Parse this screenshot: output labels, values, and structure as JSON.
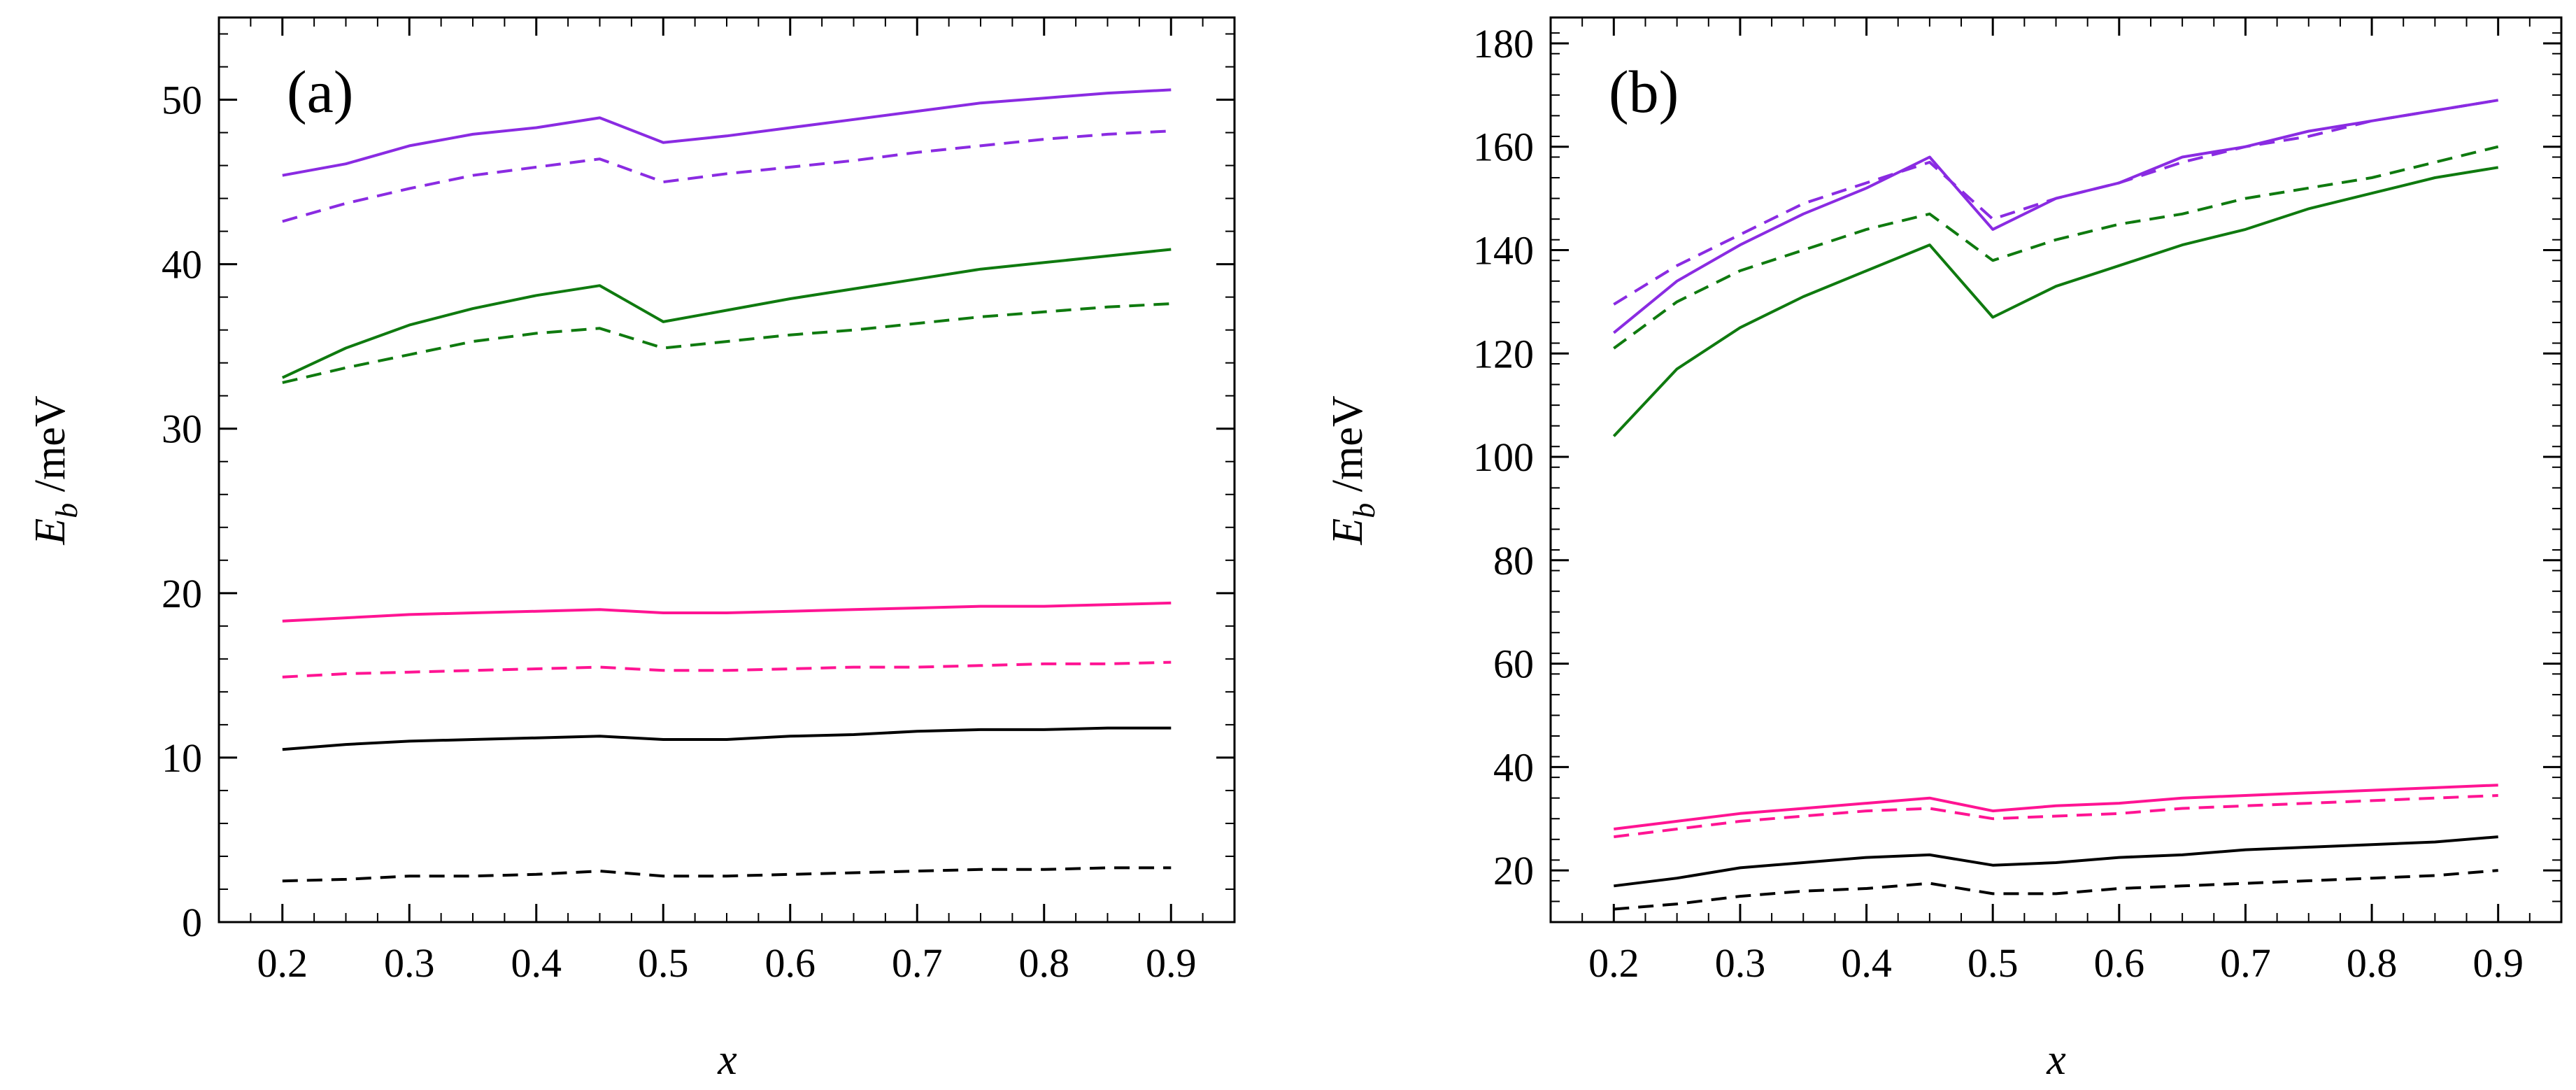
{
  "chart_data": [
    {
      "type": "line",
      "panel_label": "(a)",
      "xlabel": "x",
      "ylabel_main": "E",
      "ylabel_sub": "b",
      "ylabel_unit": " /meV",
      "xlim": [
        0.15,
        0.95
      ],
      "ylim": [
        0,
        55
      ],
      "xticks": [
        0.2,
        0.3,
        0.4,
        0.5,
        0.6,
        0.7,
        0.8,
        0.9
      ],
      "xtick_labels": [
        "0.2",
        "0.3",
        "0.4",
        "0.5",
        "0.6",
        "0.7",
        "0.8",
        "0.9"
      ],
      "yticks": [
        0,
        10,
        20,
        30,
        40,
        50
      ],
      "ytick_labels": [
        "0",
        "10",
        "20",
        "30",
        "40",
        "50"
      ],
      "x": [
        0.2,
        0.25,
        0.3,
        0.35,
        0.4,
        0.45,
        0.5,
        0.55,
        0.6,
        0.65,
        0.7,
        0.75,
        0.8,
        0.85,
        0.9
      ],
      "series": [
        {
          "name": "violet-solid",
          "color": "#8a2be2",
          "dash": "solid",
          "values": [
            45.4,
            46.1,
            47.2,
            47.9,
            48.3,
            48.9,
            47.4,
            47.8,
            48.3,
            48.8,
            49.3,
            49.8,
            50.1,
            50.4,
            50.6
          ]
        },
        {
          "name": "violet-dashed",
          "color": "#8a2be2",
          "dash": "dashed",
          "values": [
            42.6,
            43.7,
            44.6,
            45.4,
            45.9,
            46.4,
            45.0,
            45.5,
            45.9,
            46.3,
            46.8,
            47.2,
            47.6,
            47.9,
            48.1
          ]
        },
        {
          "name": "green-solid",
          "color": "#0f7a0f",
          "dash": "solid",
          "values": [
            33.1,
            34.9,
            36.3,
            37.3,
            38.1,
            38.7,
            36.5,
            37.2,
            37.9,
            38.5,
            39.1,
            39.7,
            40.1,
            40.5,
            40.9
          ]
        },
        {
          "name": "green-dashed",
          "color": "#0f7a0f",
          "dash": "dashed",
          "values": [
            32.8,
            33.7,
            34.5,
            35.3,
            35.8,
            36.1,
            34.9,
            35.3,
            35.7,
            36.0,
            36.4,
            36.8,
            37.1,
            37.4,
            37.6
          ]
        },
        {
          "name": "magenta-solid",
          "color": "#ff1493",
          "dash": "solid",
          "values": [
            18.3,
            18.5,
            18.7,
            18.8,
            18.9,
            19.0,
            18.8,
            18.8,
            18.9,
            19.0,
            19.1,
            19.2,
            19.2,
            19.3,
            19.4
          ]
        },
        {
          "name": "magenta-dashed",
          "color": "#ff1493",
          "dash": "dashed",
          "values": [
            14.9,
            15.1,
            15.2,
            15.3,
            15.4,
            15.5,
            15.3,
            15.3,
            15.4,
            15.5,
            15.5,
            15.6,
            15.7,
            15.7,
            15.8
          ]
        },
        {
          "name": "black-solid",
          "color": "#000000",
          "dash": "solid",
          "values": [
            10.5,
            10.8,
            11.0,
            11.1,
            11.2,
            11.3,
            11.1,
            11.1,
            11.3,
            11.4,
            11.6,
            11.7,
            11.7,
            11.8,
            11.8
          ]
        },
        {
          "name": "black-dashed",
          "color": "#000000",
          "dash": "dashed",
          "values": [
            2.5,
            2.6,
            2.8,
            2.8,
            2.9,
            3.1,
            2.8,
            2.8,
            2.9,
            3.0,
            3.1,
            3.2,
            3.2,
            3.3,
            3.3
          ]
        }
      ]
    },
    {
      "type": "line",
      "panel_label": "(b)",
      "xlabel": "x",
      "ylabel_main": "E",
      "ylabel_sub": "b",
      "ylabel_unit": " /meV",
      "xlim": [
        0.15,
        0.95
      ],
      "ylim": [
        10,
        185
      ],
      "xticks": [
        0.2,
        0.3,
        0.4,
        0.5,
        0.6,
        0.7,
        0.8,
        0.9
      ],
      "xtick_labels": [
        "0.2",
        "0.3",
        "0.4",
        "0.5",
        "0.6",
        "0.7",
        "0.8",
        "0.9"
      ],
      "yticks": [
        20,
        40,
        60,
        80,
        100,
        120,
        140,
        160,
        180
      ],
      "ytick_labels": [
        "20",
        "40",
        "60",
        "80",
        "100",
        "120",
        "140",
        "160",
        "180"
      ],
      "x": [
        0.2,
        0.25,
        0.3,
        0.35,
        0.4,
        0.45,
        0.5,
        0.55,
        0.6,
        0.65,
        0.7,
        0.75,
        0.8,
        0.85,
        0.9
      ],
      "series": [
        {
          "name": "violet-solid",
          "color": "#8a2be2",
          "dash": "solid",
          "values": [
            124,
            134,
            141,
            147,
            152,
            158,
            144,
            150,
            153,
            158,
            160,
            163,
            165,
            167,
            169
          ]
        },
        {
          "name": "violet-dashed",
          "color": "#8a2be2",
          "dash": "dashed",
          "values": [
            129.5,
            137,
            143,
            149,
            153,
            157,
            146,
            150,
            153,
            157,
            160,
            162,
            165,
            167,
            169
          ]
        },
        {
          "name": "green-solid",
          "color": "#0f7a0f",
          "dash": "solid",
          "values": [
            104,
            117,
            125,
            131,
            136,
            141,
            127,
            133,
            137,
            141,
            144,
            148,
            151,
            154,
            156
          ]
        },
        {
          "name": "green-dashed",
          "color": "#0f7a0f",
          "dash": "dashed",
          "values": [
            121,
            130,
            136,
            140,
            144,
            147,
            138,
            142,
            145,
            147,
            150,
            152,
            154,
            157,
            160
          ]
        },
        {
          "name": "magenta-solid",
          "color": "#ff1493",
          "dash": "solid",
          "values": [
            28,
            29.5,
            31,
            32,
            33,
            34,
            31.5,
            32.5,
            33,
            34,
            34.5,
            35,
            35.5,
            36,
            36.5
          ]
        },
        {
          "name": "magenta-dashed",
          "color": "#ff1493",
          "dash": "dashed",
          "values": [
            26.5,
            28,
            29.5,
            30.5,
            31.5,
            32,
            30,
            30.5,
            31,
            32,
            32.5,
            33,
            33.5,
            34,
            34.5
          ]
        },
        {
          "name": "black-solid",
          "color": "#000000",
          "dash": "solid",
          "values": [
            17,
            18.5,
            20.5,
            21.5,
            22.5,
            23,
            21,
            21.5,
            22.5,
            23,
            24,
            24.5,
            25,
            25.5,
            26.5
          ]
        },
        {
          "name": "black-dashed",
          "color": "#000000",
          "dash": "dashed",
          "values": [
            12.5,
            13.5,
            15,
            16,
            16.5,
            17.5,
            15.5,
            15.5,
            16.5,
            17,
            17.5,
            18,
            18.5,
            19,
            20
          ]
        }
      ]
    }
  ]
}
